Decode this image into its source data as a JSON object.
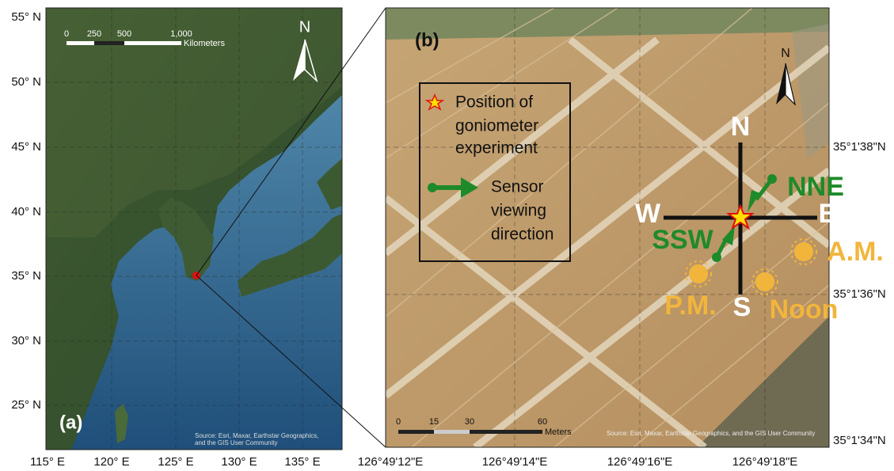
{
  "panel_a": {
    "label": "(a)",
    "lat_labels": [
      "55° N",
      "50° N",
      "45° N",
      "40° N",
      "35° N",
      "30° N",
      "25° N"
    ],
    "lon_labels": [
      "115° E",
      "120° E",
      "125° E",
      "130° E",
      "135° E"
    ],
    "scale_bar": {
      "ticks": [
        "0",
        "250",
        "500",
        "1,000"
      ],
      "unit": "Kilometers"
    },
    "north": "N",
    "source": [
      "Source: Esri, Maxar, Earthstar Geographics,",
      "and the GIS User Community"
    ]
  },
  "panel_b": {
    "label": "(b)",
    "lat_labels": [
      "35°1'38\"N",
      "35°1'36\"N",
      "35°1'34\"N"
    ],
    "lon_labels": [
      "126°49'12\"E",
      "126°49'14\"E",
      "126°49'16\"E",
      "126°49'18\"E"
    ],
    "legend": {
      "position": [
        "Position of",
        "goniometer",
        "experiment"
      ],
      "sensor": [
        "Sensor",
        "viewing",
        "direction"
      ]
    },
    "compass": {
      "n": "N",
      "s": "S",
      "e": "E",
      "w": "W"
    },
    "directions": {
      "nne": "NNE",
      "ssw": "SSW"
    },
    "sun": {
      "am": "A.M.",
      "pm": "P.M.",
      "noon": "Noon"
    },
    "scale_bar": {
      "ticks": [
        "0",
        "15",
        "30",
        "60"
      ],
      "unit": "Meters"
    },
    "north": "N",
    "source": "Source: Esri, Maxar, Earthstar Geographics, and the GIS User Community"
  }
}
